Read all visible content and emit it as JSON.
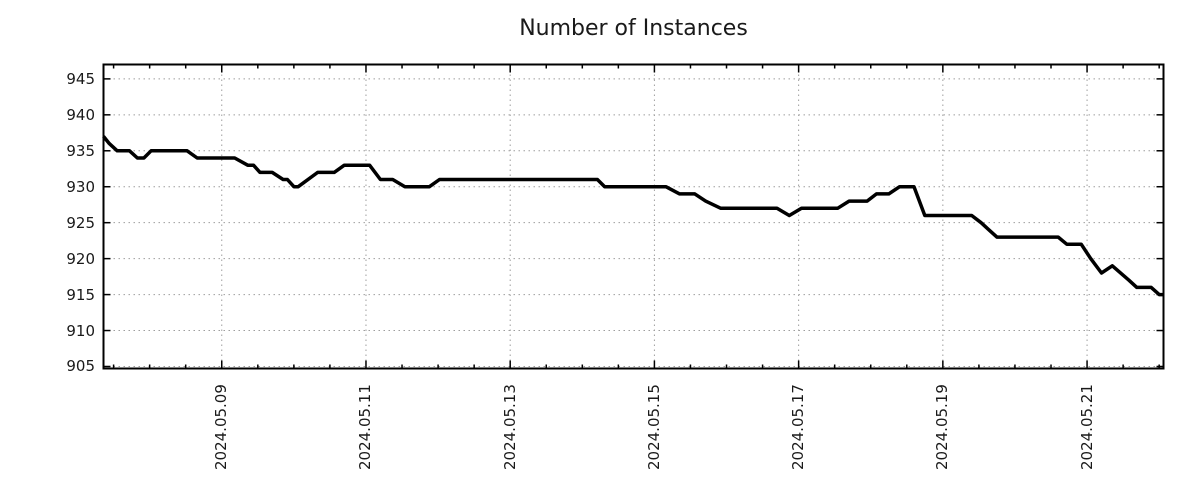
{
  "page": {
    "background": "#ffffff"
  },
  "chart_data": {
    "type": "line",
    "title": "Number of Instances",
    "legend": "none",
    "grid": {
      "shown": true,
      "style": "dotted",
      "color": "#9e9e9e"
    },
    "x_axis": {
      "kind": "date",
      "tick_labels": [
        "2024.05.09",
        "2024.05.11",
        "2024.05.13",
        "2024.05.15",
        "2024.05.17",
        "2024.05.19",
        "2024.05.21"
      ],
      "tick_positions_day_of_may": [
        9,
        11,
        13,
        15,
        17,
        19,
        21
      ],
      "minor_tick_step_days": 0.5,
      "range_day_of_may": [
        7.36,
        22.06
      ],
      "label_rotation_deg": -90
    },
    "y_axis": {
      "tick_labels": [
        "945",
        "940",
        "935",
        "930",
        "925",
        "920",
        "915",
        "910",
        "905"
      ],
      "tick_values": [
        945,
        940,
        935,
        930,
        925,
        920,
        915,
        910,
        905
      ],
      "range": [
        904.72,
        947.0
      ]
    },
    "series": [
      {
        "name": "instances",
        "color": "#000000",
        "line_width": 3.5,
        "points_day_value": [
          [
            7.36,
            937
          ],
          [
            7.44,
            936
          ],
          [
            7.55,
            935
          ],
          [
            7.72,
            935
          ],
          [
            7.83,
            934
          ],
          [
            7.92,
            934
          ],
          [
            8.02,
            935
          ],
          [
            8.52,
            935
          ],
          [
            8.66,
            934
          ],
          [
            9.18,
            934
          ],
          [
            9.36,
            933
          ],
          [
            9.44,
            933
          ],
          [
            9.53,
            932
          ],
          [
            9.7,
            932
          ],
          [
            9.85,
            931
          ],
          [
            9.91,
            931
          ],
          [
            10.0,
            930
          ],
          [
            10.06,
            930
          ],
          [
            10.33,
            932
          ],
          [
            10.56,
            932
          ],
          [
            10.7,
            933
          ],
          [
            11.05,
            933
          ],
          [
            11.2,
            931
          ],
          [
            11.37,
            931
          ],
          [
            11.54,
            930
          ],
          [
            11.88,
            930
          ],
          [
            12.02,
            931
          ],
          [
            14.21,
            931
          ],
          [
            14.31,
            930
          ],
          [
            15.16,
            930
          ],
          [
            15.35,
            929
          ],
          [
            15.56,
            929
          ],
          [
            15.71,
            928
          ],
          [
            15.92,
            927
          ],
          [
            16.7,
            927
          ],
          [
            16.87,
            926
          ],
          [
            17.04,
            927
          ],
          [
            17.54,
            927
          ],
          [
            17.7,
            928
          ],
          [
            17.95,
            928
          ],
          [
            18.08,
            929
          ],
          [
            18.25,
            929
          ],
          [
            18.4,
            930
          ],
          [
            18.6,
            930
          ],
          [
            18.75,
            926
          ],
          [
            19.4,
            926
          ],
          [
            19.53,
            925
          ],
          [
            19.64,
            924
          ],
          [
            19.75,
            923
          ],
          [
            20.6,
            923
          ],
          [
            20.72,
            922
          ],
          [
            20.92,
            922
          ],
          [
            21.05,
            920
          ],
          [
            21.2,
            918
          ],
          [
            21.35,
            919
          ],
          [
            21.58,
            917
          ],
          [
            21.69,
            916
          ],
          [
            21.89,
            916
          ],
          [
            22.0,
            915
          ],
          [
            22.06,
            915
          ]
        ]
      }
    ],
    "colors": {
      "line": "#000000",
      "border": "#000000",
      "grid": "#9e9e9e",
      "text": "#1a1a1a",
      "background": "#ffffff"
    }
  }
}
